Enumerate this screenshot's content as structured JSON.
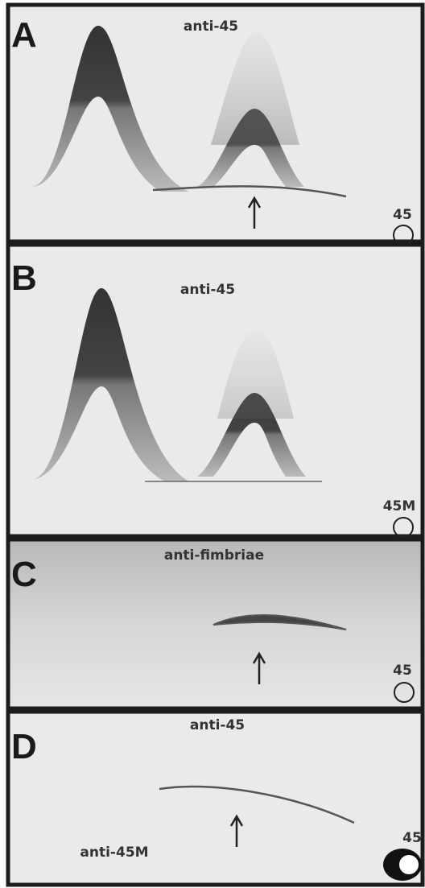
{
  "panels": [
    {
      "letter": "A",
      "antibody": "anti-45",
      "antigen": "45"
    },
    {
      "letter": "B",
      "antibody": "anti-45",
      "antigen": "45M"
    },
    {
      "letter": "C",
      "antibody": "anti-fimbriae",
      "antigen": "45"
    },
    {
      "letter": "D",
      "antibody": "anti-45",
      "antigen": "45",
      "second_antibody": "anti-45M"
    }
  ]
}
